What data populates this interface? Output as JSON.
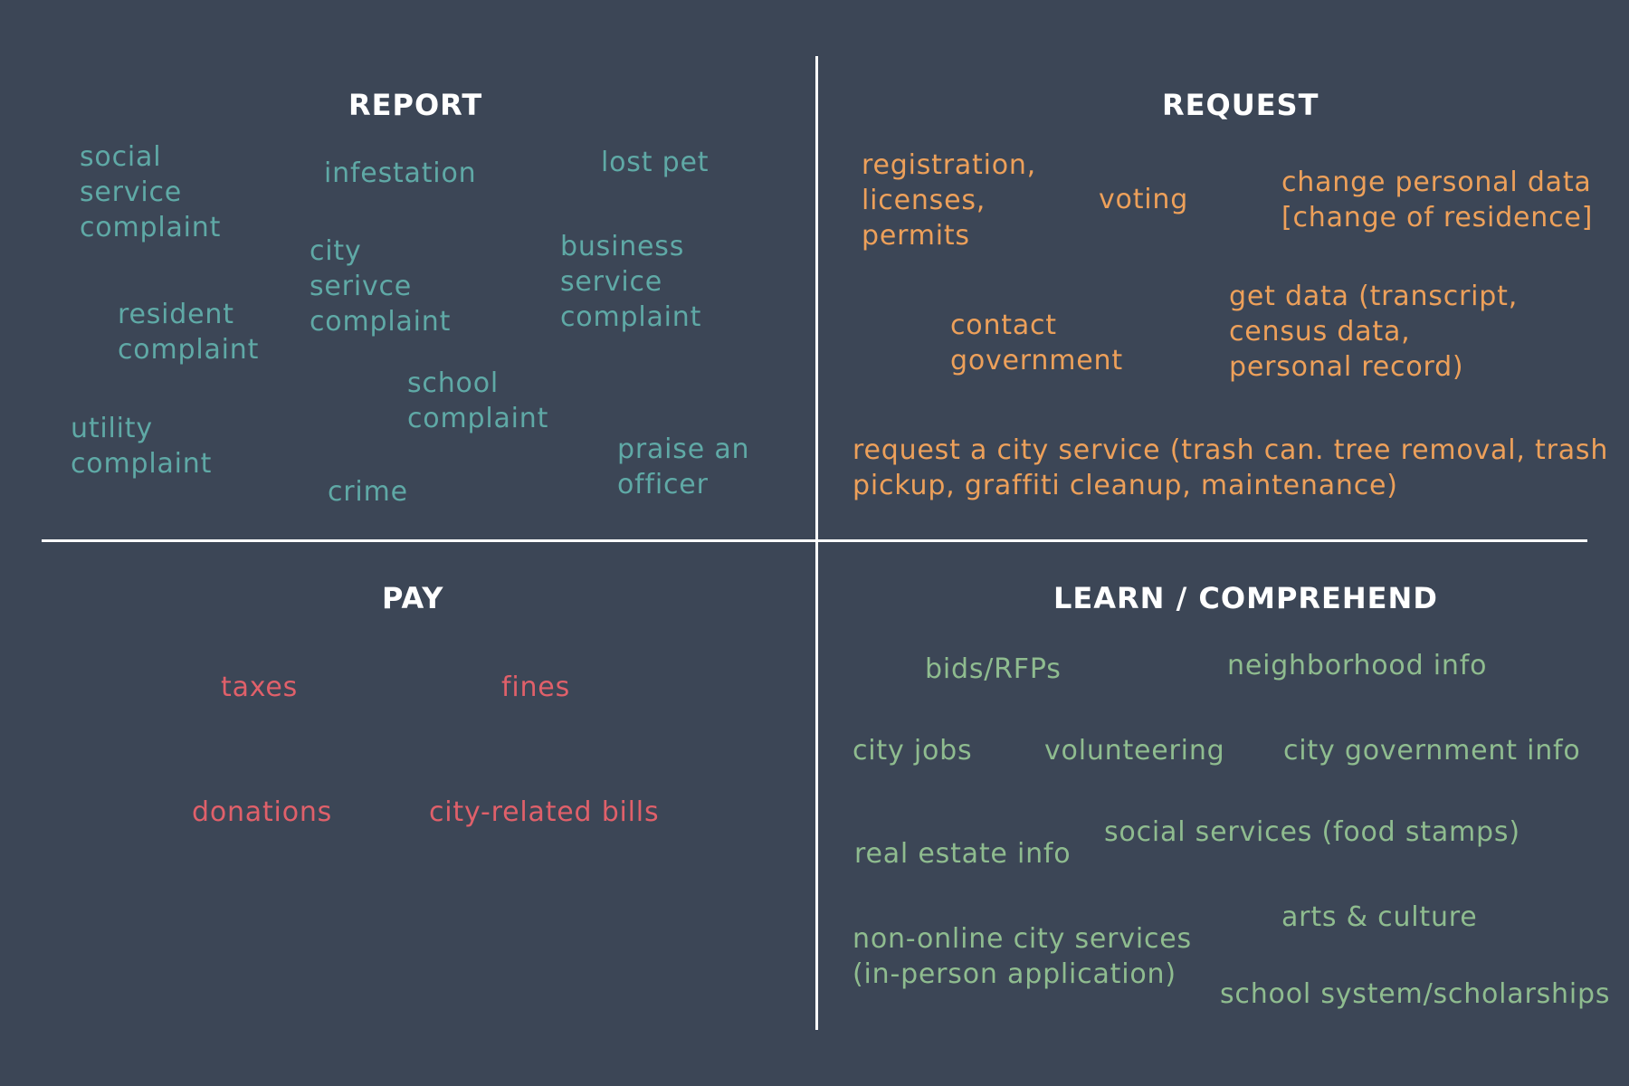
{
  "colors": {
    "background": "#3c4656",
    "report": "#5fa9a6",
    "request": "#eda05a",
    "pay": "#e0606a",
    "learn": "#8fbc8f"
  },
  "report": {
    "title": "REPORT",
    "items": [
      "social\nservice\ncomplaint",
      "infestation",
      "lost pet",
      "city\nserivce\ncomplaint",
      "business\nservice\ncomplaint",
      "resident\ncomplaint",
      "school\ncomplaint",
      "utility\ncomplaint",
      "praise an\nofficer",
      "crime"
    ]
  },
  "request": {
    "title": "REQUEST",
    "items": [
      "registration,\nlicenses,\npermits",
      "voting",
      "change personal data\n[change of residence]",
      "contact\ngovernment",
      "get data (transcript,\ncensus data,\npersonal record)",
      "request a city service (trash can. tree removal, trash\npickup, graffiti cleanup, maintenance)"
    ]
  },
  "pay": {
    "title": "PAY",
    "items": [
      "taxes",
      "fines",
      "donations",
      "city-related bills"
    ]
  },
  "learn": {
    "title": "LEARN / COMPREHEND",
    "items": [
      "bids/RFPs",
      "neighborhood info",
      "city jobs",
      "volunteering",
      "city government info",
      "real estate info",
      "social services (food stamps)",
      "non-online city services\n(in-person application)",
      "arts & culture",
      "school system/scholarships"
    ]
  }
}
